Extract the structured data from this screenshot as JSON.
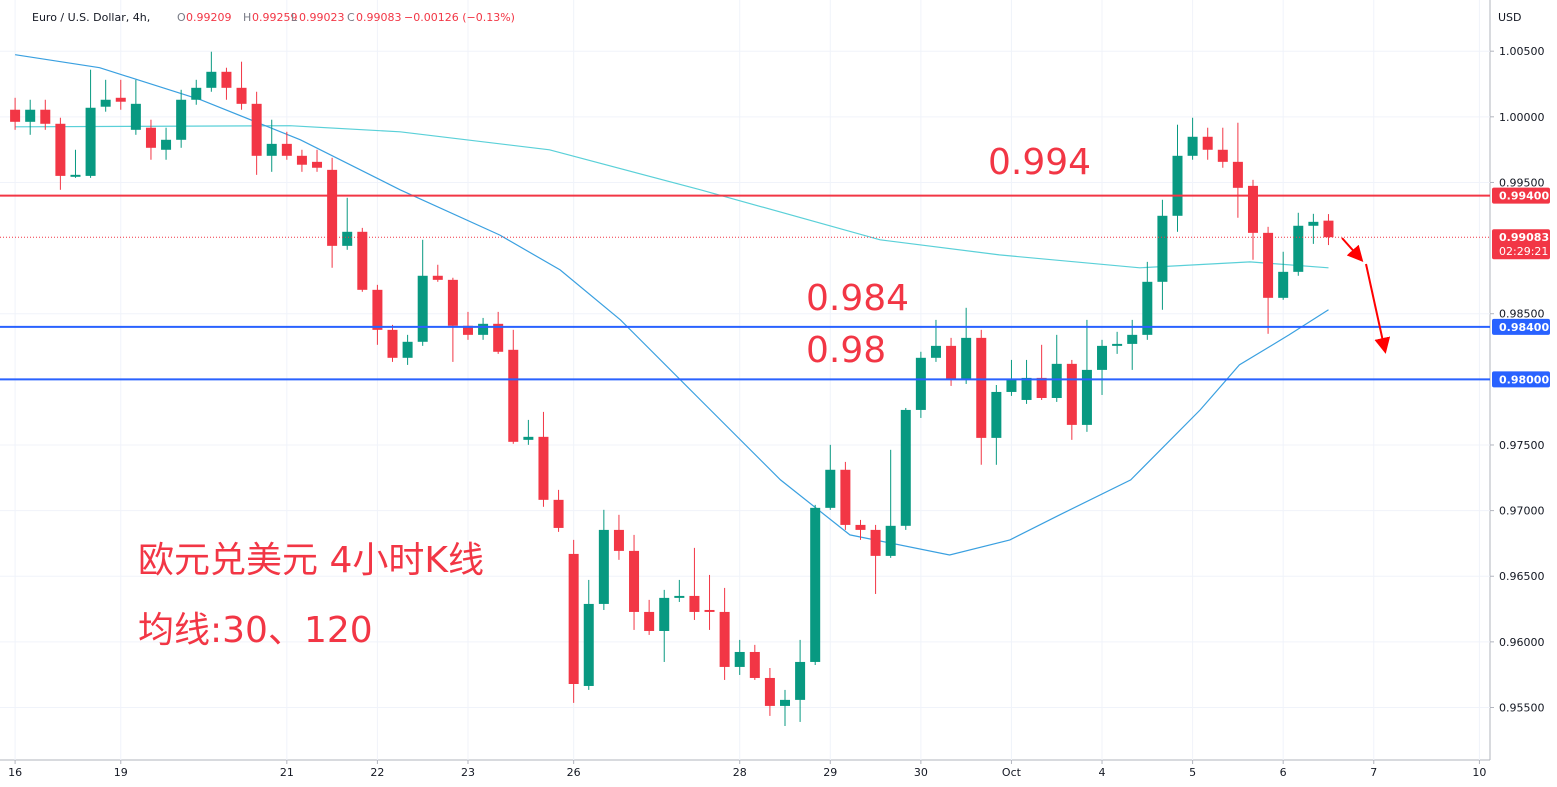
{
  "header": {
    "symbol": "Euro / U.S. Dollar, 4h,",
    "o_label": "O",
    "o_value": "0.99209",
    "h_label": "H",
    "h_value": "0.99259",
    "l_label": "L",
    "l_value": "0.99023",
    "c_label": "C",
    "c_value": "0.99083",
    "change": "−0.00126 (−0.13%)"
  },
  "chart_data": {
    "type": "candlestick",
    "currency": "USD",
    "up_color": "#089981",
    "down_color": "#f23645",
    "open": [
      1.00054,
      0.99962,
      1.00054,
      0.99947,
      0.99543,
      0.9955,
      1.00077,
      1.00145,
      0.99901,
      0.99917,
      0.99749,
      0.99825,
      1.0013,
      1.00221,
      1.00343,
      1.00221,
      1.00099,
      0.99703,
      0.99794,
      0.99703,
      0.99657,
      0.99596,
      0.99017,
      0.99124,
      0.98682,
      0.98377,
      0.98164,
      0.98286,
      0.98789,
      0.98758,
      0.98408,
      0.98339,
      0.98423,
      0.98225,
      0.97539,
      0.97562,
      0.97082,
      0.9667,
      0.95664,
      0.96289,
      0.96853,
      0.96693,
      0.96228,
      0.96083,
      0.96335,
      0.9635,
      0.96243,
      0.96228,
      0.95809,
      0.95923,
      0.95725,
      0.95512,
      0.95558,
      0.95847,
      0.97021,
      0.97311,
      0.96891,
      0.96853,
      0.96655,
      0.96884,
      0.97767,
      0.98164,
      0.98255,
      0.97996,
      0.98316,
      0.97554,
      0.97904,
      0.97843,
      0.98011,
      0.97858,
      0.98118,
      0.97653,
      0.98072,
      0.98255,
      0.9827,
      0.98339,
      0.98743,
      0.99246,
      0.99703,
      0.99848,
      0.99749,
      0.99657,
      0.99474,
      0.99116,
      0.98621,
      0.98819,
      0.9917,
      0.99209
    ],
    "high": [
      1.00145,
      1.0013,
      1.0013,
      0.99993,
      0.99749,
      1.00359,
      1.00282,
      1.00282,
      1.00282,
      0.99978,
      0.99917,
      1.00206,
      1.00282,
      1.00496,
      1.00374,
      1.0042,
      1.00191,
      0.99978,
      0.99886,
      0.99749,
      0.99749,
      0.99688,
      0.99383,
      0.99154,
      0.9872,
      0.98415,
      0.98339,
      0.99063,
      0.98873,
      0.98774,
      0.98514,
      0.98468,
      0.98514,
      0.98377,
      0.97691,
      0.97752,
      0.97158,
      0.96777,
      0.96472,
      0.97006,
      0.96968,
      0.96815,
      0.9632,
      0.96396,
      0.96472,
      0.96716,
      0.9651,
      0.96411,
      0.96015,
      0.95977,
      0.95801,
      0.95634,
      0.96015,
      0.97044,
      0.97501,
      0.97371,
      0.96929,
      0.96891,
      0.97463,
      0.97782,
      0.9821,
      0.98453,
      0.98316,
      0.98545,
      0.98377,
      0.97957,
      0.98148,
      0.98148,
      0.98263,
      0.98339,
      0.98148,
      0.98453,
      0.98301,
      0.98362,
      0.98453,
      0.98895,
      0.99368,
      0.9994,
      0.99993,
      0.99917,
      0.99917,
      0.99955,
      0.9952,
      0.99162,
      0.98972,
      0.99269,
      0.99261,
      0.99259
    ],
    "low": [
      0.99901,
      0.99863,
      0.99901,
      0.99444,
      0.99535,
      0.99535,
      1.00039,
      1.00054,
      0.99863,
      0.99673,
      0.99673,
      0.99764,
      1.00092,
      1.00191,
      1.0013,
      1.00054,
      0.99558,
      0.99581,
      0.99673,
      0.99581,
      0.99581,
      0.9885,
      0.98987,
      0.98667,
      0.98263,
      0.98133,
      0.9811,
      0.98255,
      0.98743,
      0.98133,
      0.98301,
      0.98301,
      0.98194,
      0.97509,
      0.97501,
      0.97029,
      0.96838,
      0.95535,
      0.95634,
      0.96243,
      0.96625,
      0.96091,
      0.96053,
      0.95847,
      0.96304,
      0.96167,
      0.96091,
      0.9571,
      0.95748,
      0.9571,
      0.95436,
      0.95359,
      0.9539,
      0.95824,
      0.97006,
      0.96853,
      0.96777,
      0.96365,
      0.9664,
      0.96853,
      0.97706,
      0.98133,
      0.9795,
      0.97965,
      0.97349,
      0.97349,
      0.97874,
      0.97813,
      0.97843,
      0.97828,
      0.97539,
      0.976,
      0.97881,
      0.98194,
      0.98072,
      0.98301,
      0.9853,
      0.99124,
      0.99673,
      0.99673,
      0.99612,
      0.99231,
      0.98911,
      0.98347,
      0.98606,
      0.98789,
      0.99032,
      0.99023
    ],
    "close": [
      0.99962,
      1.00054,
      0.99947,
      0.9955,
      0.99558,
      1.00069,
      1.0013,
      1.00115,
      1.00099,
      0.99764,
      0.99825,
      1.0013,
      1.00221,
      1.00343,
      1.00221,
      1.00099,
      0.99703,
      0.99794,
      0.99703,
      0.99635,
      0.99612,
      0.99017,
      0.99124,
      0.98682,
      0.98377,
      0.98164,
      0.98286,
      0.98789,
      0.98758,
      0.98408,
      0.98339,
      0.98423,
      0.9821,
      0.97524,
      0.97562,
      0.97082,
      0.96868,
      0.95679,
      0.96289,
      0.96853,
      0.96693,
      0.96228,
      0.96083,
      0.96335,
      0.9635,
      0.96228,
      0.96228,
      0.95809,
      0.95923,
      0.95725,
      0.95512,
      0.95558,
      0.95847,
      0.97021,
      0.97311,
      0.96891,
      0.96853,
      0.96655,
      0.96884,
      0.97767,
      0.98164,
      0.98255,
      0.97996,
      0.98316,
      0.97554,
      0.97904,
      0.97996,
      0.98011,
      0.97858,
      0.98118,
      0.97653,
      0.98072,
      0.98255,
      0.9827,
      0.98339,
      0.98743,
      0.99246,
      0.99703,
      0.99848,
      0.99749,
      0.99657,
      0.99459,
      0.99116,
      0.98621,
      0.98819,
      0.9917,
      0.992,
      0.99083
    ],
    "moving_averages": [
      {
        "color": "#5ad0d8",
        "x": [
          0,
          18.2,
          25.5,
          35.4,
          45.4,
          57.3,
          65.2,
          74.5,
          81.8,
          87
        ],
        "values": [
          0.99924,
          0.99932,
          0.99886,
          0.99749,
          0.99444,
          0.99063,
          0.98948,
          0.9885,
          0.98895,
          0.9885
        ]
      },
      {
        "color": "#3aa0e0",
        "x": [
          0,
          5.6,
          12.3,
          18.9,
          25.5,
          32.1,
          36.1,
          40.1,
          45.4,
          50.7,
          55.3,
          61.9,
          65.9,
          69.2,
          73.9,
          78.5,
          81.1,
          84.4,
          87
        ],
        "values": [
          1.00473,
          1.00374,
          1.0013,
          0.99825,
          0.99444,
          0.991,
          0.98834,
          0.98453,
          0.97843,
          0.97234,
          0.96815,
          0.96662,
          0.96777,
          0.96968,
          0.97234,
          0.97767,
          0.9811,
          0.98339,
          0.9853
        ]
      }
    ],
    "levels": [
      {
        "value": 0.994,
        "label": "0.99400",
        "color": "#f23645"
      },
      {
        "value": 0.984,
        "label": "0.98400",
        "color": "#2962ff"
      },
      {
        "value": 0.98,
        "label": "0.98000",
        "color": "#2962ff"
      }
    ],
    "last_price": {
      "value": 0.99083,
      "label": "0.99083",
      "countdown": "02:29:21",
      "color": "#f23645"
    },
    "xlim": [
      -1,
      97.7
    ],
    "ylim": [
      0.951,
      1.0089
    ],
    "xticks": [
      {
        "value": 0,
        "label": "16"
      },
      {
        "value": 7,
        "label": "19"
      },
      {
        "value": 18,
        "label": "21"
      },
      {
        "value": 24,
        "label": "22"
      },
      {
        "value": 30,
        "label": "23"
      },
      {
        "value": 37,
        "label": "26"
      },
      {
        "value": 48,
        "label": "28"
      },
      {
        "value": 54,
        "label": "29"
      },
      {
        "value": 60,
        "label": "30"
      },
      {
        "value": 66,
        "label": "Oct"
      },
      {
        "value": 72,
        "label": "4"
      },
      {
        "value": 78,
        "label": "5"
      },
      {
        "value": 84,
        "label": "6"
      },
      {
        "value": 90,
        "label": "7"
      },
      {
        "value": 97,
        "label": "10"
      }
    ],
    "yticks": [
      {
        "value": 1.005,
        "label": "1.00500"
      },
      {
        "value": 1.0,
        "label": "1.00000"
      },
      {
        "value": 0.995,
        "label": "0.99500"
      },
      {
        "value": 0.985,
        "label": "0.98500"
      },
      {
        "value": 0.975,
        "label": "0.97500"
      },
      {
        "value": 0.97,
        "label": "0.97000"
      },
      {
        "value": 0.965,
        "label": "0.96500"
      },
      {
        "value": 0.96,
        "label": "0.96000"
      },
      {
        "value": 0.955,
        "label": "0.95500"
      }
    ],
    "grid": true,
    "annotations": [
      "0.994",
      "0.984",
      "0.98",
      "欧元兑美元 4小时K线",
      "均线:30、120"
    ]
  }
}
